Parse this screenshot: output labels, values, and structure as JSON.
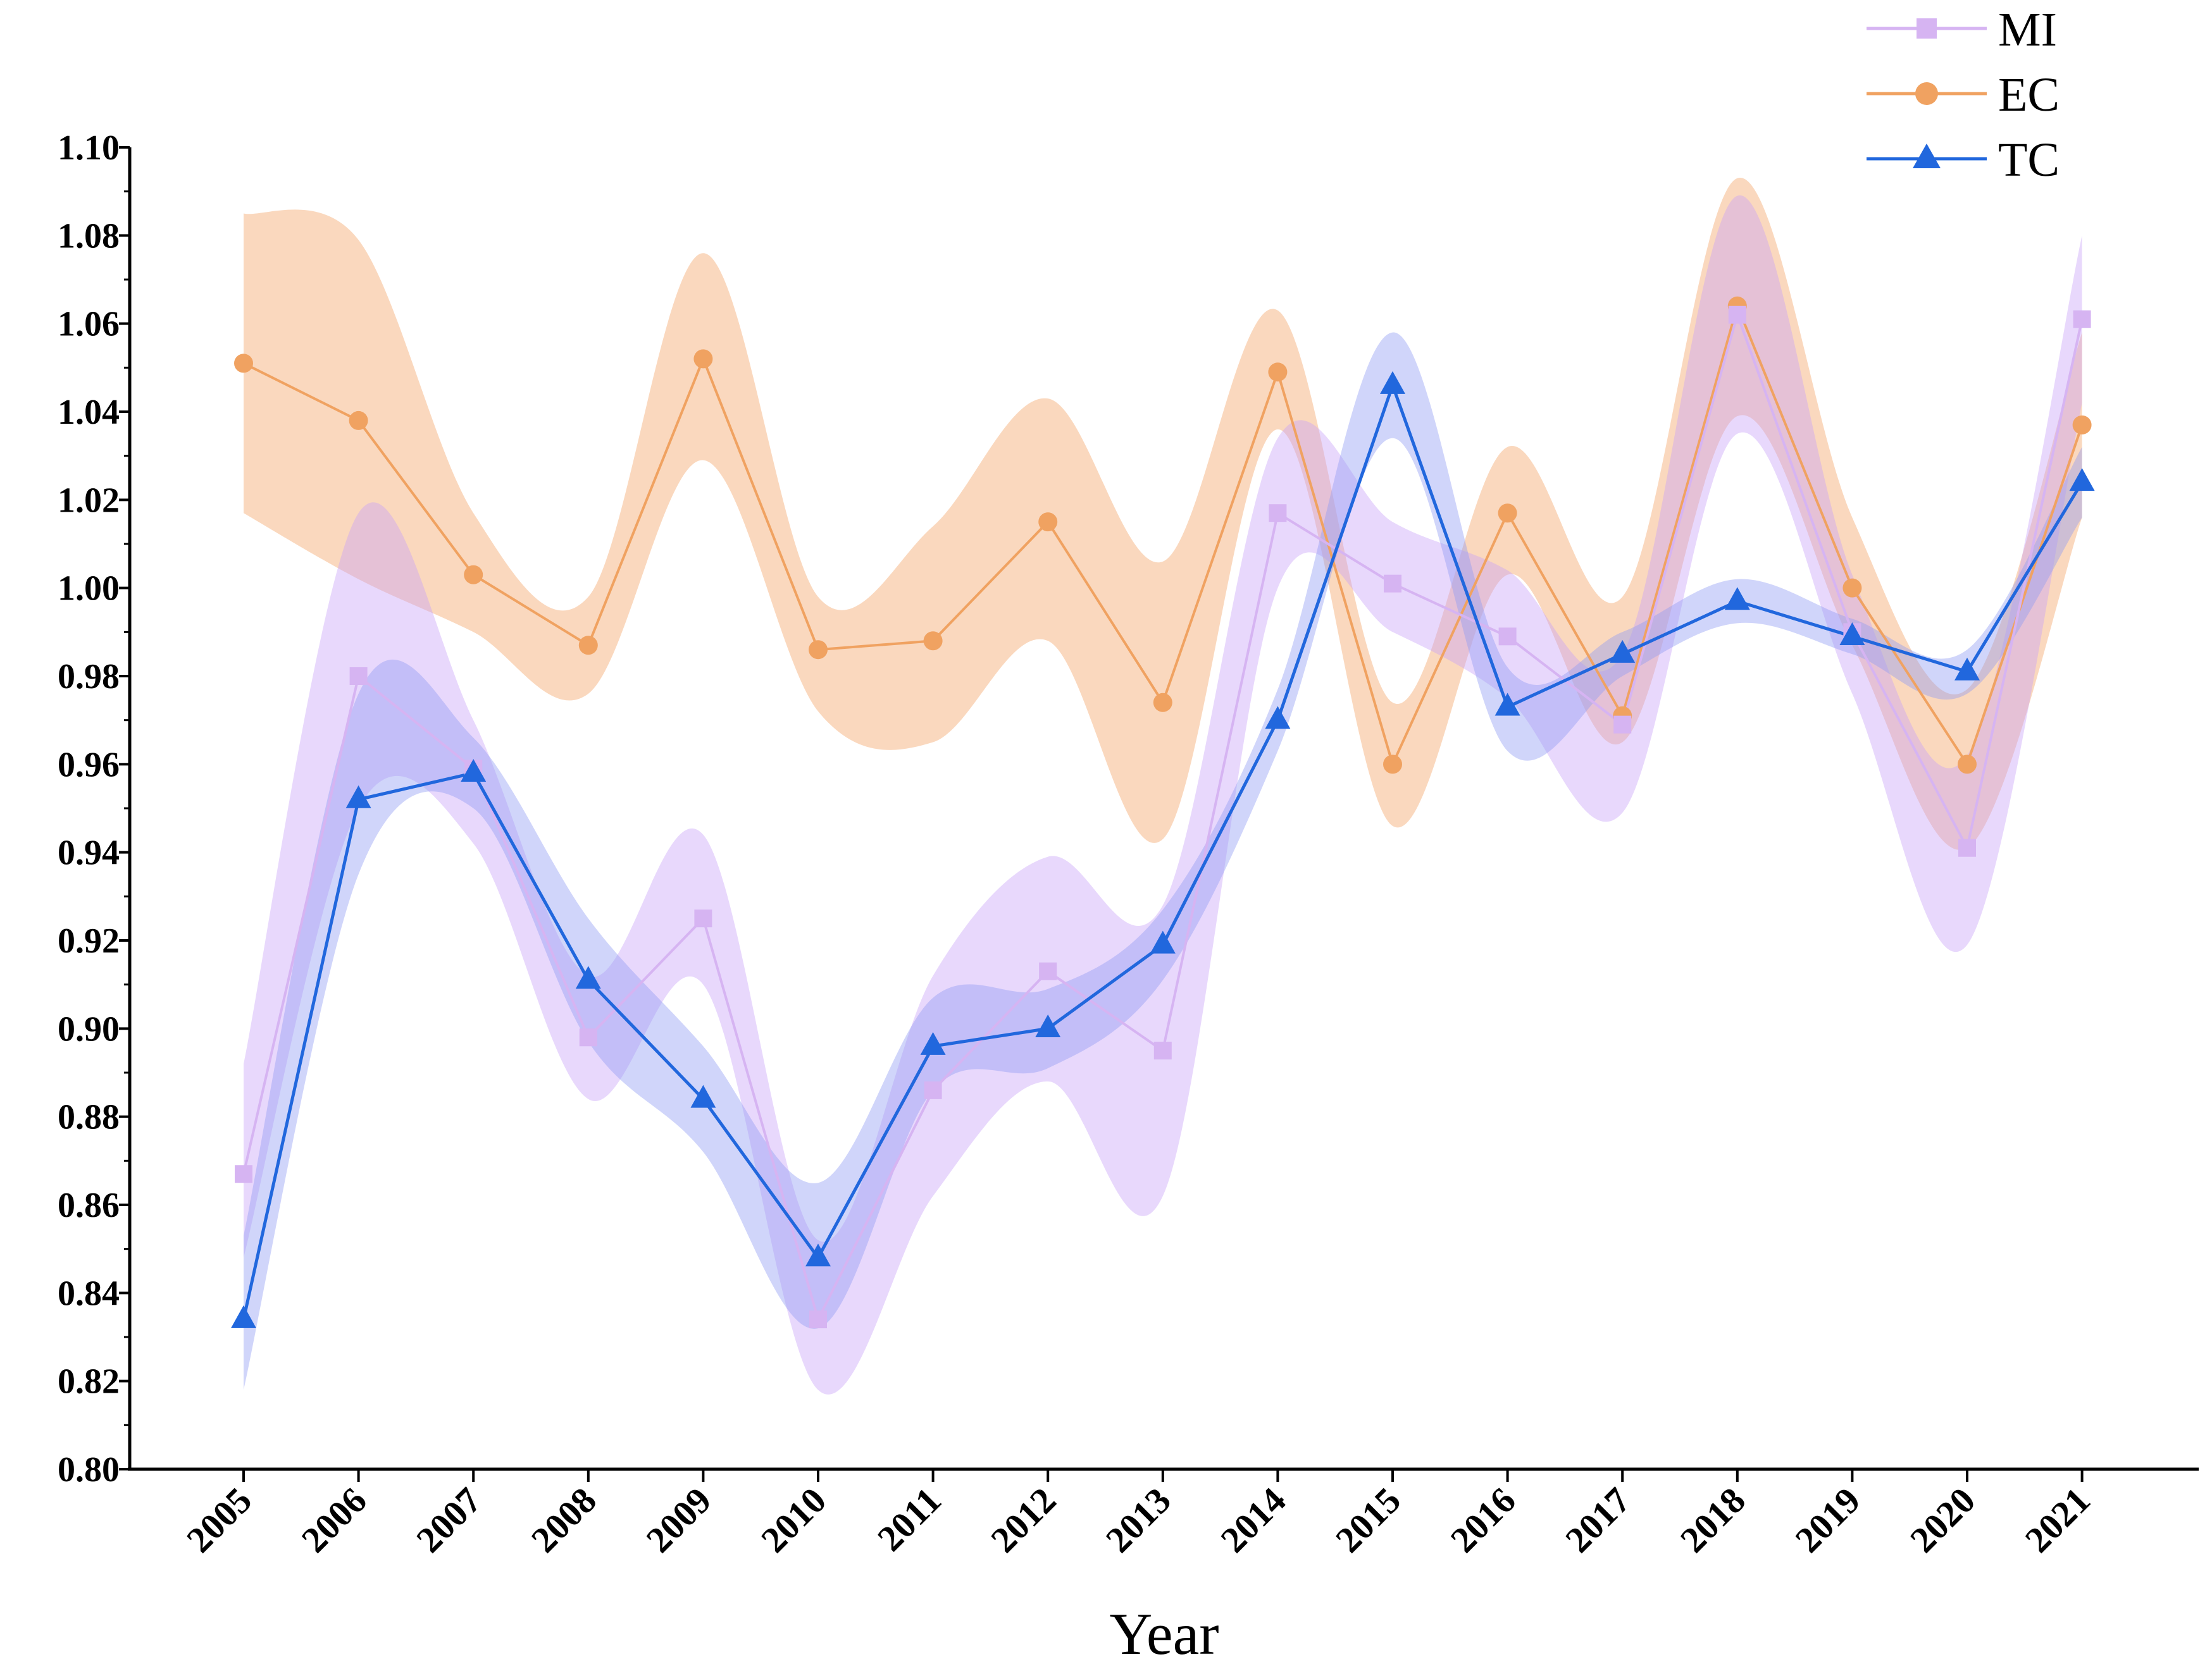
{
  "chart_data": {
    "type": "line",
    "title": "",
    "xlabel": "Year",
    "ylabel": "",
    "ylim": [
      0.8,
      1.1
    ],
    "yticks": [
      0.8,
      0.82,
      0.84,
      0.86,
      0.88,
      0.9,
      0.92,
      0.94,
      0.96,
      0.98,
      1.0,
      1.02,
      1.04,
      1.06,
      1.08,
      1.1
    ],
    "ytick_labels": [
      "0.80",
      "0.82",
      "0.84",
      "0.86",
      "0.88",
      "0.90",
      "0.92",
      "0.94",
      "0.96",
      "0.98",
      "1.00",
      "1.02",
      "1.04",
      "1.06",
      "1.08",
      "1.10"
    ],
    "grid": false,
    "legend_position": "top-right",
    "categories": [
      "2005",
      "2006",
      "2007",
      "2008",
      "2009",
      "2010",
      "2011",
      "2012",
      "2013",
      "2014",
      "2015",
      "2016",
      "2017",
      "2018",
      "2019",
      "2020",
      "2021"
    ],
    "series": [
      {
        "name": "MI",
        "marker": "square",
        "color": "#D6B4F2",
        "band_color": "#C9A2F7",
        "values": [
          0.867,
          0.98,
          0.959,
          0.898,
          0.925,
          0.834,
          0.886,
          0.913,
          0.895,
          1.017,
          1.001,
          0.989,
          0.969,
          1.062,
          0.99,
          0.941,
          1.061
        ],
        "lower": [
          0.848,
          0.95,
          0.942,
          0.884,
          0.91,
          0.818,
          0.862,
          0.888,
          0.862,
          1.0,
          0.99,
          0.975,
          0.949,
          1.035,
          0.976,
          0.919,
          1.042
        ],
        "upper": [
          0.892,
          1.017,
          0.97,
          0.912,
          0.944,
          0.852,
          0.912,
          0.939,
          0.928,
          1.034,
          1.015,
          1.004,
          0.985,
          1.089,
          1.003,
          0.962,
          1.08
        ]
      },
      {
        "name": "EC",
        "marker": "circle",
        "color": "#F0A261",
        "band_color": "#F5B888",
        "values": [
          1.051,
          1.038,
          1.003,
          0.987,
          1.052,
          0.986,
          0.988,
          1.015,
          0.974,
          1.049,
          0.96,
          1.017,
          0.971,
          1.064,
          1.0,
          0.96,
          1.037
        ],
        "lower": [
          1.017,
          1.002,
          0.99,
          0.976,
          1.029,
          0.972,
          0.965,
          0.988,
          0.943,
          1.036,
          0.946,
          1.003,
          0.965,
          1.039,
          0.987,
          0.941,
          1.016
        ],
        "upper": [
          1.085,
          1.079,
          1.017,
          0.998,
          1.076,
          0.998,
          1.014,
          1.043,
          1.006,
          1.063,
          0.974,
          1.032,
          0.998,
          1.093,
          1.016,
          0.977,
          1.058
        ]
      },
      {
        "name": "TC",
        "marker": "triangle",
        "color": "#2167DD",
        "band_color": "#8F9CF2",
        "values": [
          0.834,
          0.952,
          0.958,
          0.911,
          0.884,
          0.848,
          0.896,
          0.9,
          0.919,
          0.97,
          1.046,
          0.973,
          0.985,
          0.997,
          0.989,
          0.981,
          1.024
        ],
        "lower": [
          0.818,
          0.935,
          0.95,
          0.897,
          0.872,
          0.832,
          0.886,
          0.891,
          0.911,
          0.963,
          1.034,
          0.963,
          0.98,
          0.992,
          0.985,
          0.976,
          1.016
        ],
        "upper": [
          0.853,
          0.976,
          0.966,
          0.925,
          0.896,
          0.865,
          0.907,
          0.909,
          0.927,
          0.977,
          1.058,
          0.982,
          0.99,
          1.002,
          0.993,
          0.986,
          1.032
        ]
      }
    ]
  }
}
